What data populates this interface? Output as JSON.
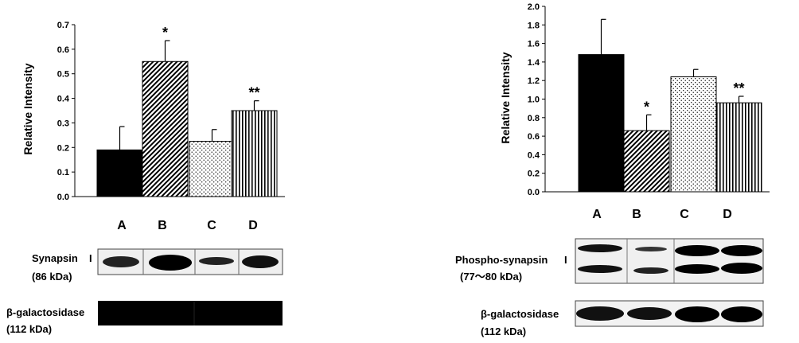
{
  "chart_data": [
    {
      "type": "bar",
      "ylabel": "Relative Intensity",
      "ylim": [
        0,
        0.7
      ],
      "yticks": [
        "0.0",
        "0.1",
        "0.2",
        "0.3",
        "0.4",
        "0.5",
        "0.6",
        "0.7"
      ],
      "categories": [
        "A",
        "B",
        "C",
        "D"
      ],
      "values": [
        0.19,
        0.55,
        0.225,
        0.35
      ],
      "errors": [
        0.095,
        0.085,
        0.048,
        0.04
      ],
      "annotations": [
        "",
        "*",
        "",
        "**"
      ],
      "fills": [
        "solid",
        "diagonal-hatch",
        "dots",
        "vertical-lines"
      ],
      "blots": [
        {
          "label_line1": "Synapsin",
          "roman": "I",
          "label_line2": "(86 kDa)"
        },
        {
          "label_line1": "β-galactosidase",
          "roman": "",
          "label_line2": "(112 kDa)"
        }
      ]
    },
    {
      "type": "bar",
      "ylabel": "Relative Intensity",
      "ylim": [
        0,
        2.0
      ],
      "yticks": [
        "0.0",
        "0.2",
        "0.4",
        "0.6",
        "0.8",
        "1.0",
        "1.2",
        "1.4",
        "1.6",
        "1.8",
        "2.0"
      ],
      "categories": [
        "A",
        "B",
        "C",
        "D"
      ],
      "values": [
        1.48,
        0.66,
        1.24,
        0.96
      ],
      "errors": [
        0.38,
        0.17,
        0.08,
        0.07
      ],
      "annotations": [
        "",
        "*",
        "",
        "**"
      ],
      "fills": [
        "solid",
        "diagonal-hatch",
        "dots",
        "vertical-lines"
      ],
      "blots": [
        {
          "label_line1": "Phospho-synapsin",
          "roman": "I",
          "label_line2": "(77～80 kDa)"
        },
        {
          "label_line1": "β-galactosidase",
          "roman": "",
          "label_line2": "(112 kDa)"
        }
      ]
    }
  ]
}
